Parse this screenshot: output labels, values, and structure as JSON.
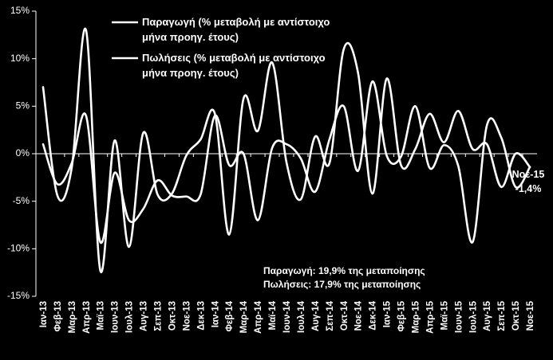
{
  "chart_data": {
    "type": "line",
    "title": "",
    "xlabel": "",
    "ylabel": "",
    "ylim": [
      -15,
      15
    ],
    "yticks": [
      15,
      10,
      5,
      0,
      -5,
      -10,
      -15
    ],
    "ytick_labels": [
      "15%",
      "10%",
      "5%",
      "0%",
      "-5%",
      "-10%",
      "-15%"
    ],
    "grid": false,
    "legend_position": "top-center",
    "categories": [
      "Ιαν-13",
      "Φεβ-13",
      "Μαρ-13",
      "Απρ-13",
      "Μαϊ-13",
      "Ιουν-13",
      "Ιουλ-13",
      "Αυγ-13",
      "Σεπ-13",
      "Οκτ-13",
      "Νοε-13",
      "Δεκ-13",
      "Ιαν-14",
      "Φεβ-14",
      "Μαρ-14",
      "Απρ-14",
      "Μαϊ-14",
      "Ιουν-14",
      "Ιουλ-14",
      "Αυγ-14",
      "Σεπ-14",
      "Οκτ-14",
      "Νοε-14",
      "Δεκ-14",
      "Ιαν-15",
      "Φεβ-15",
      "Μαρ-15",
      "Απρ-15",
      "Μαϊ-15",
      "Ιουν-15",
      "Ιουλ-15",
      "Αυγ-15",
      "Σεπ-15",
      "Οκτ-15",
      "Νοε-15"
    ],
    "xtick_labels": [
      "Ιαν-13",
      "Φεβ-13",
      "Μαρ-13",
      "Απρ-13",
      "Μαϊ-13",
      "Ιουν-13",
      "Ιουλ-13",
      "Αυγ-13",
      "Σεπ-13",
      "Οκτ-13",
      "Νοε-13",
      "Δεκ-13",
      "Ιαν-14",
      "Φεβ-14",
      "Μαρ-14",
      "Απρ-14",
      "Μαϊ-14",
      "Ιουν-14",
      "Ιουλ-14",
      "Αυγ-14",
      "Σεπ-14",
      "Οκτ-14",
      "Νοε-14",
      "Δεκ-14",
      "Ιαν-15",
      "Φεβ-15",
      "Μαρ-15",
      "Απρ-15",
      "Μαϊ-15",
      "Ιουν-15",
      "Ιουλ-15",
      "Αυγ-15",
      "Σεπ-15",
      "Οκτ-15",
      "Νοε-15"
    ],
    "series": [
      {
        "name": "Παραγωγή (% μεταβολή με αντίστοιχο μήνα προηγ. έτους)",
        "color": "#ffffff",
        "values": [
          1.0,
          -3.2,
          -1.0,
          4.0,
          -9.3,
          -2.0,
          -7.0,
          -5.8,
          -2.8,
          -4.4,
          -4.5,
          -4.3,
          4.0,
          -1.2,
          0.0,
          -7.0,
          0.6,
          1.0,
          -0.5,
          -4.0,
          1.5,
          5.0,
          -1.8,
          7.6,
          -0.2,
          -0.3,
          5.0,
          -1.5,
          0.9,
          -1.3,
          -9.3,
          3.0,
          1.7,
          -3.5,
          -1.4
        ]
      },
      {
        "name": "Πωλήσεις (% μεταβολή με αντίστοιχο μήνα προηγ. έτους)",
        "color": "#ffffff",
        "values": [
          7.0,
          -4.4,
          -1.5,
          13.0,
          -12.3,
          1.4,
          -9.8,
          2.2,
          -4.3,
          -4.2,
          -0.2,
          1.5,
          4.2,
          -8.5,
          5.8,
          2.4,
          9.6,
          -0.9,
          -4.8,
          1.8,
          -1.0,
          11.0,
          8.5,
          -4.2,
          7.9,
          -1.2,
          0.5,
          4.2,
          1.2,
          4.5,
          0.5,
          1.0,
          -3.5,
          0.0,
          -1.4
        ]
      }
    ],
    "annotations": [
      "Παραγωγή: 19,9% της μεταποίησης",
      "Πωλήσεις: 17,9% της μεταποίησης"
    ],
    "last_point_label": {
      "category": "Νοε-15",
      "value": "-1,4%"
    }
  },
  "legend": {
    "series1": [
      "Παραγωγή (% μεταβολή με αντίστοιχο",
      "μήνα προηγ. έτους)"
    ],
    "series2": [
      "Πωλήσεις (% μεταβολή με αντίστοιχο",
      "μήνα προηγ. έτους)"
    ]
  }
}
